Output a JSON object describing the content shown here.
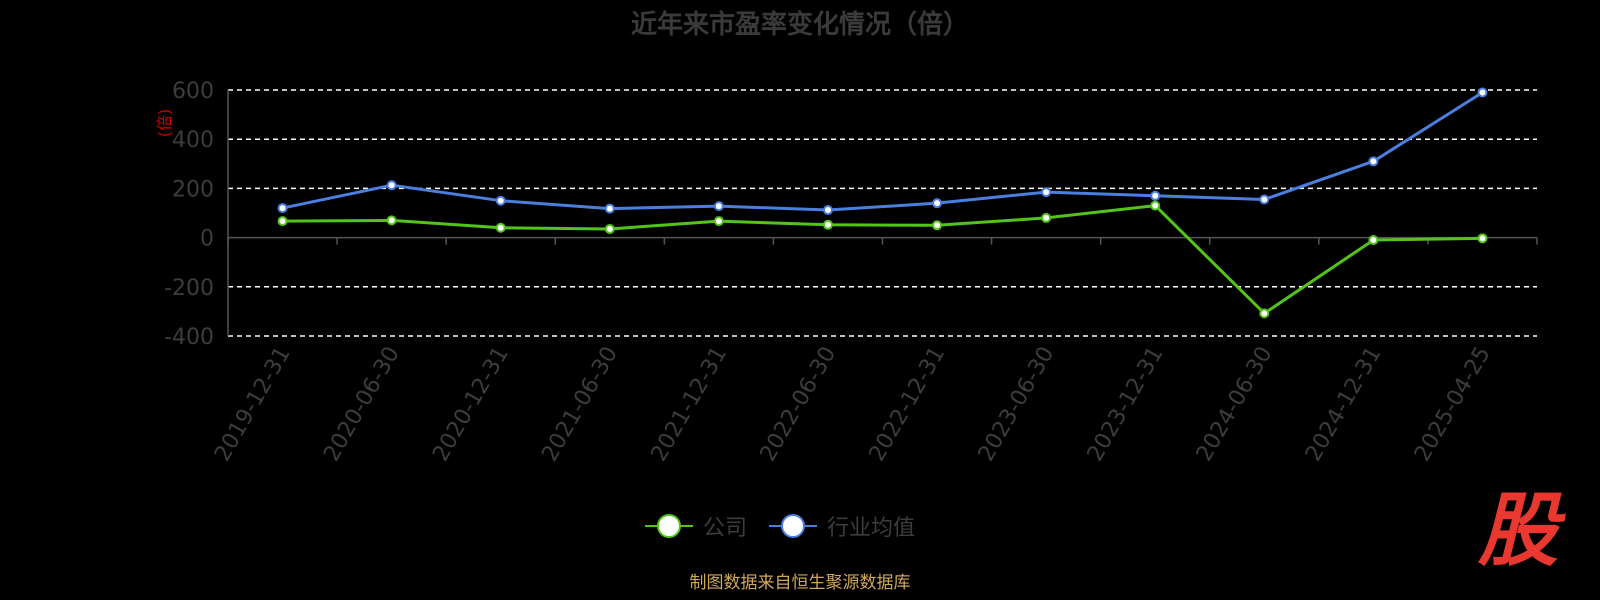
{
  "chart_data": {
    "type": "line",
    "title": "近年来市盈率变化情况（倍）",
    "ylabel": "(倍)",
    "ylim": [
      -400,
      600
    ],
    "yticks": [
      -400,
      -200,
      0,
      200,
      400,
      600
    ],
    "grid": true,
    "legend_position": "bottom",
    "categories": [
      "2019-12-31",
      "2020-06-30",
      "2020-12-31",
      "2021-06-30",
      "2021-12-31",
      "2022-06-30",
      "2022-12-31",
      "2023-06-30",
      "2023-12-31",
      "2024-06-30",
      "2024-12-31",
      "2025-04-25"
    ],
    "series": [
      {
        "name": "公司",
        "color": "#52c41a",
        "values": [
          67,
          70,
          40,
          35,
          67,
          52,
          50,
          80,
          130,
          -308,
          -10,
          -3
        ]
      },
      {
        "name": "行业均值",
        "color": "#4a7fe0",
        "values": [
          120,
          213,
          150,
          118,
          128,
          112,
          140,
          185,
          170,
          155,
          310,
          590
        ]
      }
    ]
  },
  "source": "制图数据来自恒生聚源数据库",
  "logo_text": "股"
}
